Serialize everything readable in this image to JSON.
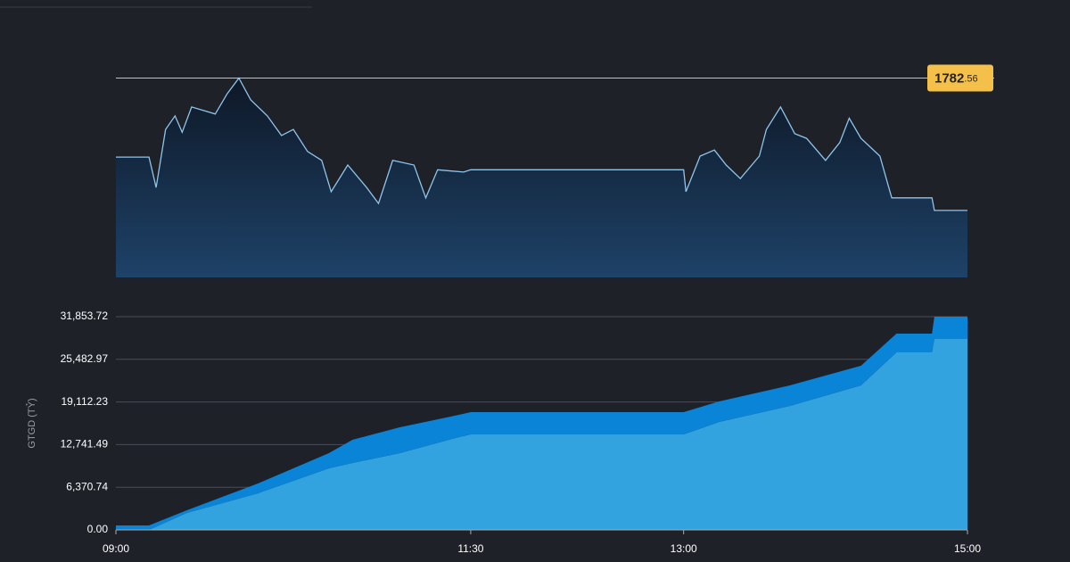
{
  "chart_data": [
    {
      "type": "line",
      "x": [
        "09:00",
        "09:14",
        "09:17",
        "09:21",
        "09:25",
        "09:28",
        "09:32",
        "09:42",
        "09:47",
        "09:52",
        "09:57",
        "10:04",
        "10:10",
        "10:15",
        "10:21",
        "10:27",
        "10:31",
        "10:38",
        "10:46",
        "10:51",
        "10:57",
        "11:06",
        "11:11",
        "11:16",
        "11:27",
        "11:30",
        "13:00",
        "13:01",
        "13:07",
        "13:13",
        "13:18",
        "13:24",
        "13:32",
        "13:35",
        "13:41",
        "13:47",
        "13:52",
        "14:00",
        "14:06",
        "14:10",
        "14:15",
        "14:23",
        "14:28",
        "14:45",
        "14:46",
        "15:00"
      ],
      "values": [
        1765.7,
        1765.7,
        1759.2,
        1771.6,
        1774.5,
        1771.0,
        1776.4,
        1774.9,
        1779.2,
        1782.56,
        1777.9,
        1774.5,
        1770.3,
        1771.6,
        1766.9,
        1765.0,
        1758.3,
        1764.0,
        1759.2,
        1755.8,
        1765.0,
        1764.0,
        1757.0,
        1763.0,
        1762.5,
        1763.0,
        1763.0,
        1758.3,
        1765.9,
        1767.2,
        1764.0,
        1761.1,
        1765.9,
        1771.6,
        1776.4,
        1770.7,
        1769.7,
        1765.0,
        1768.8,
        1774.0,
        1769.7,
        1765.9,
        1757.0,
        1757.0,
        1754.3,
        1754.3
      ],
      "color": "#8ec5ec",
      "xlim": [
        "09:00",
        "15:00"
      ],
      "ylim": [
        1740,
        1784
      ],
      "reference_line": {
        "value": 1782.56,
        "label": "1782.56",
        "color": "#f5c04a"
      }
    },
    {
      "type": "area",
      "ylabel": "GTGD (TỶ)",
      "x": [
        "09:00",
        "09:14",
        "09:30",
        "10:00",
        "10:30",
        "10:40",
        "11:00",
        "11:25",
        "11:30",
        "13:00",
        "13:15",
        "13:45",
        "14:15",
        "14:30",
        "14:45",
        "14:46",
        "15:00"
      ],
      "series": [
        {
          "color": "#33a3df",
          "values": [
            0,
            0,
            2532,
            5465,
            9198,
            9998,
            11464,
            13864,
            14264,
            14264,
            16130,
            18529,
            21595,
            26528,
            26528,
            28528,
            28528
          ]
        },
        {
          "color": "#0a84d6",
          "values": [
            666,
            666,
            400,
            1466,
            2266,
            3466,
            3866,
            3332,
            3332,
            3332,
            3066,
            3066,
            2933,
            2800,
            2800,
            3326,
            3326
          ]
        }
      ],
      "stacked": true,
      "xlim": [
        "09:00",
        "15:00"
      ],
      "xticks": [
        "09:00",
        "11:30",
        "13:00",
        "15:00"
      ],
      "ylim": [
        0,
        31853.72
      ],
      "yticks": [
        {
          "value": 0,
          "label": "0.00"
        },
        {
          "value": 6370.74,
          "label": "6,370.74"
        },
        {
          "value": 12741.49,
          "label": "12,741.49"
        },
        {
          "value": 19112.23,
          "label": "19,112.23"
        },
        {
          "value": 25482.97,
          "label": "25,482.97"
        },
        {
          "value": 31853.72,
          "label": "31,853.72"
        }
      ],
      "grid": true
    }
  ]
}
